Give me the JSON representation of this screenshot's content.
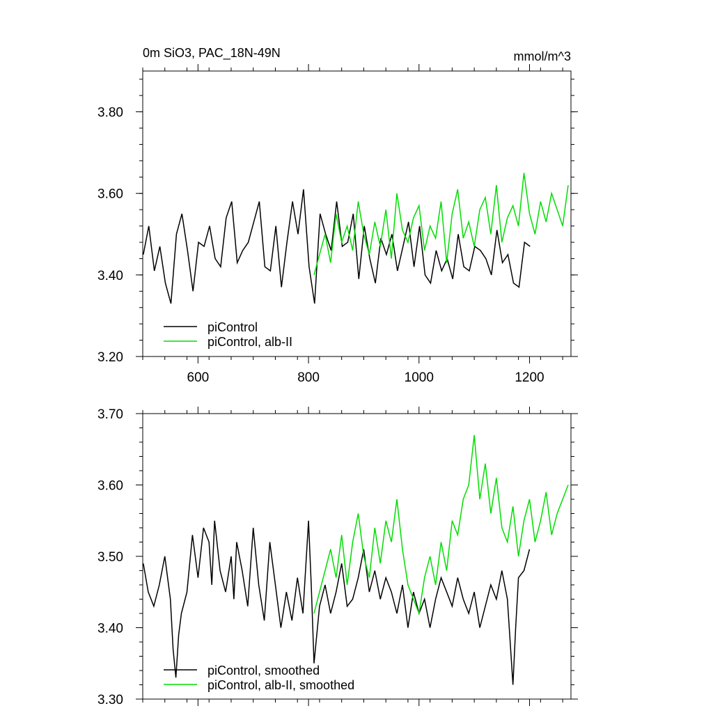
{
  "chart_data": [
    {
      "type": "line",
      "title": "0m SiO3, PAC_18N-49N",
      "units": "mmol/m^3",
      "xlim": [
        500,
        1275
      ],
      "ylim": [
        3.2,
        3.9
      ],
      "x_ticks": [
        600,
        800,
        1000,
        1200
      ],
      "y_ticks": [
        3.2,
        3.4,
        3.6,
        3.8
      ],
      "y_tick_labels": [
        "3.20",
        "3.40",
        "3.60",
        "3.80"
      ],
      "legend_placement": "bottom-left",
      "series": [
        {
          "name": "piControl",
          "color": "#000000",
          "x_start": 501,
          "x_end": 1200,
          "x_step": 10,
          "values": [
            3.45,
            3.52,
            3.41,
            3.47,
            3.38,
            3.33,
            3.5,
            3.55,
            3.46,
            3.36,
            3.48,
            3.47,
            3.52,
            3.44,
            3.42,
            3.54,
            3.58,
            3.43,
            3.46,
            3.48,
            3.53,
            3.58,
            3.42,
            3.41,
            3.52,
            3.37,
            3.48,
            3.58,
            3.5,
            3.61,
            3.42,
            3.33,
            3.55,
            3.5,
            3.46,
            3.58,
            3.47,
            3.48,
            3.55,
            3.39,
            3.52,
            3.44,
            3.38,
            3.49,
            3.45,
            3.5,
            3.41,
            3.47,
            3.53,
            3.42,
            3.52,
            3.4,
            3.38,
            3.46,
            3.41,
            3.44,
            3.39,
            3.5,
            3.42,
            3.41,
            3.47,
            3.46,
            3.44,
            3.4,
            3.51,
            3.43,
            3.45,
            3.38,
            3.37,
            3.48,
            3.47
          ]
        },
        {
          "name": "piControl, alb-II",
          "color": "#00dd00",
          "x_start": 810,
          "x_end": 1270,
          "x_step": 10,
          "values": [
            3.4,
            3.45,
            3.5,
            3.43,
            3.55,
            3.48,
            3.52,
            3.46,
            3.58,
            3.5,
            3.45,
            3.53,
            3.47,
            3.56,
            3.44,
            3.6,
            3.51,
            3.48,
            3.54,
            3.57,
            3.46,
            3.52,
            3.49,
            3.58,
            3.43,
            3.55,
            3.61,
            3.49,
            3.53,
            3.47,
            3.56,
            3.59,
            3.5,
            3.62,
            3.48,
            3.54,
            3.57,
            3.52,
            3.65,
            3.55,
            3.5,
            3.58,
            3.53,
            3.6,
            3.56,
            3.52,
            3.62
          ]
        }
      ]
    },
    {
      "type": "line",
      "xlim": [
        500,
        1275
      ],
      "ylim": [
        3.3,
        3.7
      ],
      "x_ticks": [
        600,
        800,
        1000,
        1200
      ],
      "y_ticks": [
        3.3,
        3.4,
        3.5,
        3.6,
        3.7
      ],
      "y_tick_labels": [
        "3.30",
        "3.40",
        "3.50",
        "3.60",
        "3.70"
      ],
      "legend_placement": "bottom-left",
      "series": [
        {
          "name": "piControl, smoothed",
          "color": "#000000",
          "x": [
            501,
            510,
            520,
            530,
            540,
            550,
            555,
            560,
            565,
            570,
            580,
            590,
            600,
            610,
            620,
            625,
            630,
            640,
            650,
            660,
            665,
            670,
            680,
            690,
            700,
            710,
            720,
            730,
            740,
            750,
            760,
            770,
            780,
            790,
            800,
            805,
            810,
            820,
            830,
            840,
            850,
            860,
            870,
            880,
            890,
            900,
            910,
            920,
            930,
            940,
            950,
            960,
            970,
            980,
            990,
            1000,
            1010,
            1020,
            1030,
            1040,
            1050,
            1060,
            1070,
            1080,
            1090,
            1100,
            1110,
            1120,
            1130,
            1140,
            1150,
            1160,
            1170,
            1175,
            1180,
            1190,
            1200
          ],
          "values": [
            3.49,
            3.45,
            3.43,
            3.46,
            3.5,
            3.44,
            3.37,
            3.33,
            3.39,
            3.42,
            3.45,
            3.53,
            3.47,
            3.54,
            3.52,
            3.46,
            3.55,
            3.48,
            3.45,
            3.5,
            3.44,
            3.52,
            3.48,
            3.43,
            3.54,
            3.46,
            3.41,
            3.52,
            3.46,
            3.4,
            3.45,
            3.41,
            3.47,
            3.42,
            3.55,
            3.46,
            3.35,
            3.43,
            3.46,
            3.42,
            3.45,
            3.49,
            3.43,
            3.44,
            3.47,
            3.51,
            3.45,
            3.48,
            3.44,
            3.47,
            3.45,
            3.42,
            3.46,
            3.4,
            3.45,
            3.42,
            3.44,
            3.4,
            3.44,
            3.47,
            3.45,
            3.43,
            3.47,
            3.44,
            3.42,
            3.45,
            3.4,
            3.43,
            3.46,
            3.44,
            3.48,
            3.44,
            3.32,
            3.4,
            3.47,
            3.48,
            3.51
          ]
        },
        {
          "name": "piControl, alb-II, smoothed",
          "color": "#00dd00",
          "x": [
            810,
            820,
            830,
            840,
            850,
            860,
            870,
            880,
            890,
            900,
            910,
            920,
            930,
            940,
            950,
            960,
            970,
            980,
            990,
            1000,
            1010,
            1020,
            1030,
            1040,
            1050,
            1060,
            1070,
            1080,
            1090,
            1100,
            1110,
            1120,
            1130,
            1140,
            1150,
            1160,
            1170,
            1180,
            1190,
            1200,
            1210,
            1220,
            1230,
            1240,
            1250,
            1260,
            1270
          ],
          "values": [
            3.42,
            3.45,
            3.48,
            3.51,
            3.47,
            3.53,
            3.46,
            3.52,
            3.56,
            3.5,
            3.47,
            3.54,
            3.49,
            3.55,
            3.52,
            3.58,
            3.51,
            3.46,
            3.44,
            3.42,
            3.47,
            3.5,
            3.46,
            3.52,
            3.48,
            3.55,
            3.53,
            3.58,
            3.6,
            3.67,
            3.58,
            3.63,
            3.56,
            3.61,
            3.54,
            3.52,
            3.57,
            3.5,
            3.55,
            3.58,
            3.52,
            3.55,
            3.59,
            3.53,
            3.56,
            3.58,
            3.6
          ]
        }
      ]
    }
  ]
}
